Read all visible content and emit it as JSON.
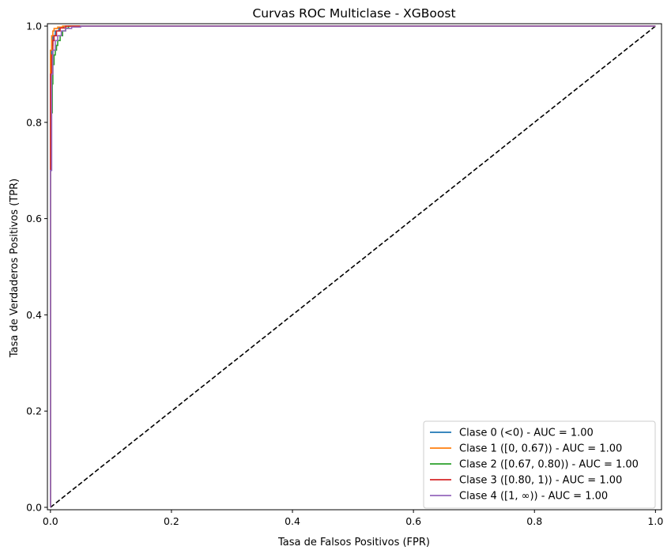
{
  "chart_data": {
    "type": "line",
    "title": "Curvas ROC Multiclase - XGBoost",
    "xlabel": "Tasa de Falsos Positivos (FPR)",
    "ylabel": "Tasa de Verdaderos Positivos (TPR)",
    "xlim": [
      -0.005,
      1.01
    ],
    "ylim": [
      -0.005,
      1.005
    ],
    "xticks": [
      0.0,
      0.2,
      0.4,
      0.6,
      0.8,
      1.0
    ],
    "yticks": [
      0.0,
      0.2,
      0.4,
      0.6,
      0.8,
      1.0
    ],
    "xtick_labels": [
      "0.0",
      "0.2",
      "0.4",
      "0.6",
      "0.8",
      "1.0"
    ],
    "ytick_labels": [
      "0.0",
      "0.2",
      "0.4",
      "0.6",
      "0.8",
      "1.0"
    ],
    "grid": false,
    "legend_position": "bottom-right",
    "series": [
      {
        "name": "Clase 0 (<0) - AUC = 1.00",
        "color": "#1f77b4",
        "x": [
          0,
          0,
          0.002,
          0.002,
          0.004,
          0.004,
          0.008,
          0.008,
          0.014,
          0.014,
          0.022,
          0.022,
          1.0
        ],
        "y": [
          0,
          0.92,
          0.92,
          0.96,
          0.96,
          0.98,
          0.98,
          0.99,
          0.99,
          0.997,
          0.997,
          1.0,
          1.0
        ]
      },
      {
        "name": "Clase 1 ([0, 0.67)) - AUC = 1.00",
        "color": "#ff7f0e",
        "x": [
          0,
          0,
          0.002,
          0.002,
          0.004,
          0.004,
          0.006,
          0.006,
          0.012,
          0.012,
          0.02,
          0.02,
          1.0
        ],
        "y": [
          0,
          0.95,
          0.95,
          0.98,
          0.98,
          0.99,
          0.99,
          0.995,
          0.995,
          0.998,
          0.998,
          1.0,
          1.0
        ]
      },
      {
        "name": "Clase 2 ([0.67, 0.80)) - AUC = 1.00",
        "color": "#2ca02c",
        "x": [
          0,
          0,
          0.003,
          0.003,
          0.004,
          0.004,
          0.006,
          0.006,
          0.008,
          0.008,
          0.01,
          0.01,
          0.012,
          0.012,
          0.016,
          0.016,
          0.02,
          0.02,
          0.025,
          0.025,
          0.03,
          0.03,
          1.0
        ],
        "y": [
          0,
          0.82,
          0.82,
          0.88,
          0.88,
          0.92,
          0.92,
          0.94,
          0.94,
          0.95,
          0.95,
          0.96,
          0.96,
          0.97,
          0.97,
          0.98,
          0.98,
          0.99,
          0.99,
          0.996,
          0.996,
          1.0,
          1.0
        ]
      },
      {
        "name": "Clase 3 ([0.80, 1)) - AUC = 1.00",
        "color": "#d62728",
        "x": [
          0,
          0,
          0.002,
          0.002,
          0.004,
          0.004,
          0.006,
          0.006,
          0.01,
          0.01,
          0.016,
          0.016,
          0.025,
          0.025,
          1.0
        ],
        "y": [
          0,
          0.9,
          0.9,
          0.94,
          0.94,
          0.97,
          0.97,
          0.98,
          0.98,
          0.99,
          0.99,
          0.996,
          0.996,
          1.0,
          1.0
        ]
      },
      {
        "name": "Clase 4 ([1, ∞)) - AUC = 1.00",
        "color": "#9467bd",
        "x": [
          0,
          0,
          0.002,
          0.002,
          0.004,
          0.004,
          0.008,
          0.008,
          0.012,
          0.012,
          0.018,
          0.018,
          0.025,
          0.025,
          0.035,
          0.035,
          0.05,
          0.05,
          1.0
        ],
        "y": [
          0,
          0.7,
          0.7,
          0.9,
          0.9,
          0.95,
          0.95,
          0.97,
          0.97,
          0.98,
          0.98,
          0.99,
          0.99,
          0.995,
          0.995,
          0.998,
          0.998,
          1.0,
          1.0
        ]
      }
    ],
    "reference_line": {
      "style": "dashed",
      "color": "#000000",
      "x": [
        0,
        1
      ],
      "y": [
        0,
        1
      ]
    }
  }
}
